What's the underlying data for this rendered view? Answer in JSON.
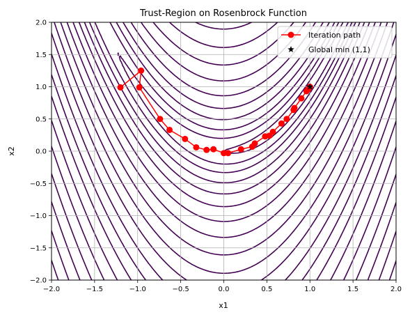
{
  "chart_data": {
    "type": "line",
    "title": "Trust-Region on Rosenbrock Function",
    "xlabel": "x1",
    "ylabel": "x2",
    "xlim": [
      -2.0,
      2.0
    ],
    "ylim": [
      -2.0,
      2.0
    ],
    "grid": true,
    "legend_placement": "top-right",
    "x_ticks": [
      "−2.0",
      "−1.5",
      "−1.0",
      "−0.5",
      "0.0",
      "0.5",
      "1.0",
      "1.5",
      "2.0"
    ],
    "y_ticks": [
      "−2.0",
      "−1.5",
      "−1.0",
      "−0.5",
      "0.0",
      "0.5",
      "1.0",
      "1.5",
      "2.0"
    ],
    "x_tick_values": [
      -2.0,
      -1.5,
      -1.0,
      -0.5,
      0.0,
      0.5,
      1.0,
      1.5,
      2.0
    ],
    "y_tick_values": [
      -2.0,
      -1.5,
      -1.0,
      -0.5,
      0.0,
      0.5,
      1.0,
      1.5,
      2.0
    ],
    "contour": {
      "function": "rosenbrock",
      "levels": [
        1,
        5,
        12,
        25,
        45,
        75,
        120,
        180,
        260,
        360,
        480,
        630,
        800,
        1000,
        1250,
        1550,
        1900,
        2300,
        2750,
        3250
      ],
      "color": "#440154"
    },
    "series": [
      {
        "name": "Iteration path",
        "color": "#ff0000",
        "marker": "circle",
        "x": [
          -1.2,
          -0.96,
          -0.98,
          -0.74,
          -0.63,
          -0.45,
          -0.32,
          -0.2,
          -0.12,
          0.0,
          0.05,
          0.2,
          0.33,
          0.36,
          0.48,
          0.53,
          0.57,
          0.67,
          0.73,
          0.81,
          0.82,
          0.9,
          0.96,
          0.98,
          1.0
        ],
        "y": [
          0.99,
          1.25,
          0.99,
          0.5,
          0.33,
          0.19,
          0.06,
          0.02,
          0.03,
          -0.03,
          -0.03,
          0.03,
          0.07,
          0.12,
          0.23,
          0.24,
          0.3,
          0.43,
          0.5,
          0.64,
          0.67,
          0.82,
          0.93,
          0.96,
          1.0
        ]
      },
      {
        "name": "Global min (1,1)",
        "color": "#000000",
        "marker": "star",
        "x": [
          1.0
        ],
        "y": [
          1.0
        ]
      }
    ]
  }
}
